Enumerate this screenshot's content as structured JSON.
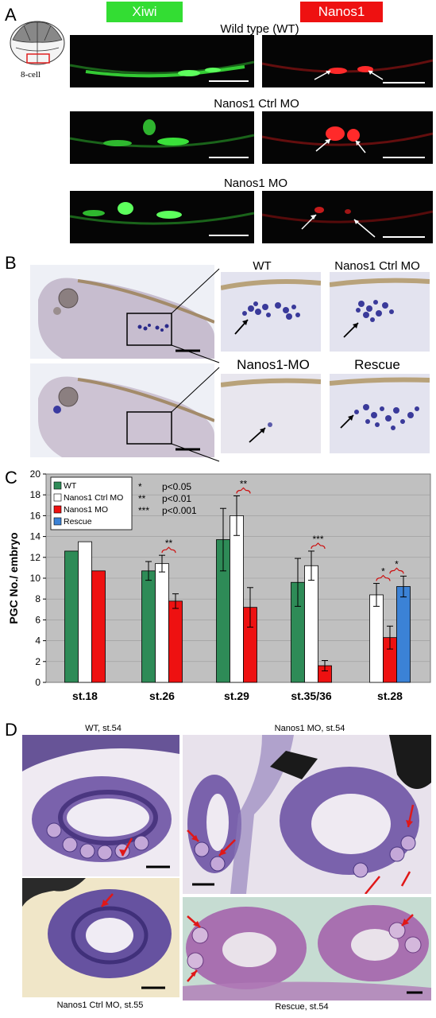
{
  "panels": {
    "A": {
      "label": "A",
      "inset_label": "8-cell",
      "channel_xiwi": "Xiwi",
      "channel_nanos1": "Nanos1",
      "rows": [
        "Wild type (WT)",
        "Nanos1 Ctrl MO",
        "Nanos1 MO"
      ],
      "colors": {
        "xiwi_bg": "#33dd33",
        "nanos1_bg": "#ee1111",
        "green_signal": "#3ae03a",
        "red_signal": "#ff2a2a"
      }
    },
    "B": {
      "label": "B",
      "labels": [
        "WT",
        "Nanos1 Ctrl MO",
        "Nanos1-MO",
        "Rescue"
      ]
    },
    "C": {
      "label": "C"
    },
    "D": {
      "label": "D",
      "captions": [
        "WT, st.54",
        "Nanos1 MO, st.54",
        "Nanos1 Ctrl MO, st.55",
        "Rescue, st.54"
      ]
    }
  },
  "chart_data": {
    "type": "bar",
    "ylabel": "PGC No./ embryo",
    "xlabel": "",
    "ylim": [
      0,
      20
    ],
    "yticks": [
      0,
      2,
      4,
      6,
      8,
      10,
      12,
      14,
      16,
      18,
      20
    ],
    "categories": [
      "st.18",
      "st.26",
      "st.29",
      "st.35/36",
      "st.28"
    ],
    "series": [
      {
        "name": "WT",
        "color": "#2e8b57",
        "values": [
          12.6,
          10.7,
          13.7,
          9.6,
          null
        ],
        "errors": [
          null,
          0.9,
          3.0,
          2.3,
          null
        ]
      },
      {
        "name": "Nanos1 Ctrl MO",
        "color": "#ffffff",
        "values": [
          13.5,
          11.4,
          16.0,
          11.2,
          8.4
        ],
        "errors": [
          null,
          0.8,
          1.9,
          1.4,
          1.1
        ]
      },
      {
        "name": "Nanos1 MO",
        "color": "#ee1111",
        "values": [
          10.7,
          7.8,
          7.2,
          1.6,
          4.3
        ],
        "errors": [
          null,
          0.7,
          1.9,
          0.5,
          1.1
        ]
      },
      {
        "name": "Rescue",
        "color": "#3b82d6",
        "values": [
          null,
          null,
          null,
          null,
          9.2
        ],
        "errors": [
          null,
          null,
          null,
          null,
          1.0
        ]
      }
    ],
    "significance_legend": [
      {
        "sym": "*",
        "text": "p<0.05"
      },
      {
        "sym": "**",
        "text": "p<0.01"
      },
      {
        "sym": "***",
        "text": "p<0.001"
      }
    ],
    "annotations": [
      {
        "category": 1,
        "pair": [
          1,
          2
        ],
        "text": "**"
      },
      {
        "category": 2,
        "pair": [
          1,
          2
        ],
        "text": "**"
      },
      {
        "category": 3,
        "pair": [
          1,
          2
        ],
        "text": "***"
      },
      {
        "category": 4,
        "pair": [
          1,
          2
        ],
        "text": "*"
      },
      {
        "category": 4,
        "pair": [
          2,
          3
        ],
        "text": "*"
      }
    ],
    "legend_placement": "top-left",
    "plot_background": "#c0c0c0",
    "grid": true
  }
}
